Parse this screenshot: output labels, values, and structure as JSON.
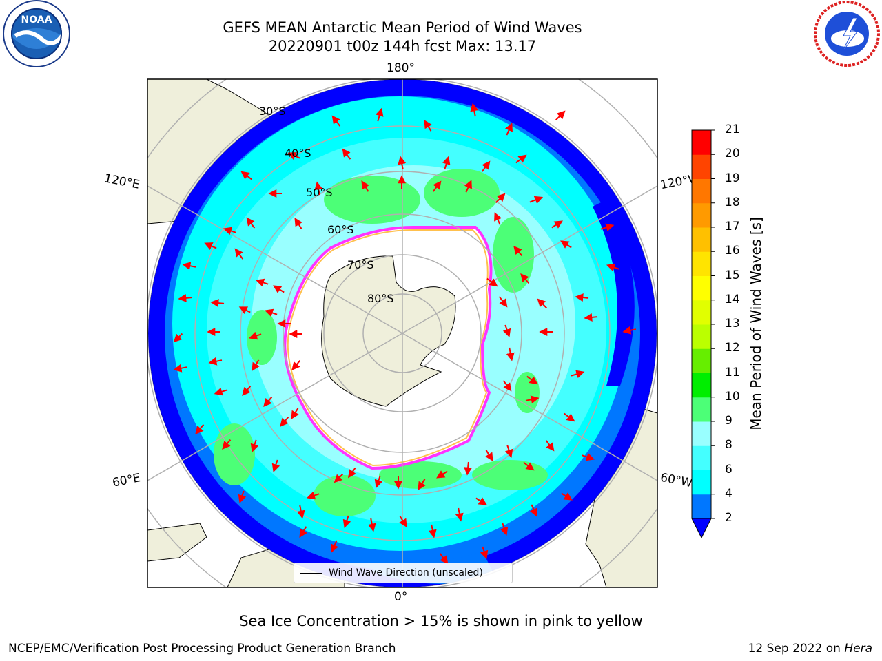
{
  "title": {
    "line1": "GEFS MEAN Antarctic Mean Period of Wind Waves",
    "line2": "20220901 t00z 144h fcst   Max: 13.17"
  },
  "map": {
    "projection": "south-polar-stereographic",
    "lon_labels": {
      "top": "180°",
      "left": "120°E",
      "right": "120°W",
      "bottom": "0°",
      "lower_left": "60°E",
      "lower_right": "60°W"
    },
    "lat_labels": [
      "30°S",
      "40°S",
      "50°S",
      "60°S",
      "70°S",
      "80°S"
    ],
    "legend_label": "Wind Wave Direction (unscaled)",
    "colors": {
      "land": "#efefdb",
      "ice_edge": "#ff33ff",
      "ice_inner": "#ffc04d",
      "arrow": "#ff0000",
      "grid": "#b0b0b0"
    }
  },
  "colorbar": {
    "label": "Mean Period of Wind Waves [s]",
    "ticks": [
      "2",
      "4",
      "6",
      "8",
      "9",
      "10",
      "11",
      "12",
      "13",
      "14",
      "15",
      "16",
      "17",
      "18",
      "19",
      "20",
      "21"
    ],
    "colors": [
      "#0077ff",
      "#00ffff",
      "#44ffff",
      "#99ffff",
      "#4cff77",
      "#00ee00",
      "#66ee00",
      "#bbff00",
      "#e1ff00",
      "#ffff00",
      "#ffe400",
      "#ffc000",
      "#ff9a00",
      "#ff7700",
      "#ff4400",
      "#ff0000"
    ],
    "under_color": "#0000ff",
    "extend": "min"
  },
  "notes": {
    "subtitle": "Sea Ice Concentration > 15% is shown in pink to yellow"
  },
  "footer": {
    "left": "NCEP/EMC/Verification Post Processing Product Generation Branch",
    "right_date": "12 Sep 2022 on ",
    "right_machine": "Hera"
  }
}
